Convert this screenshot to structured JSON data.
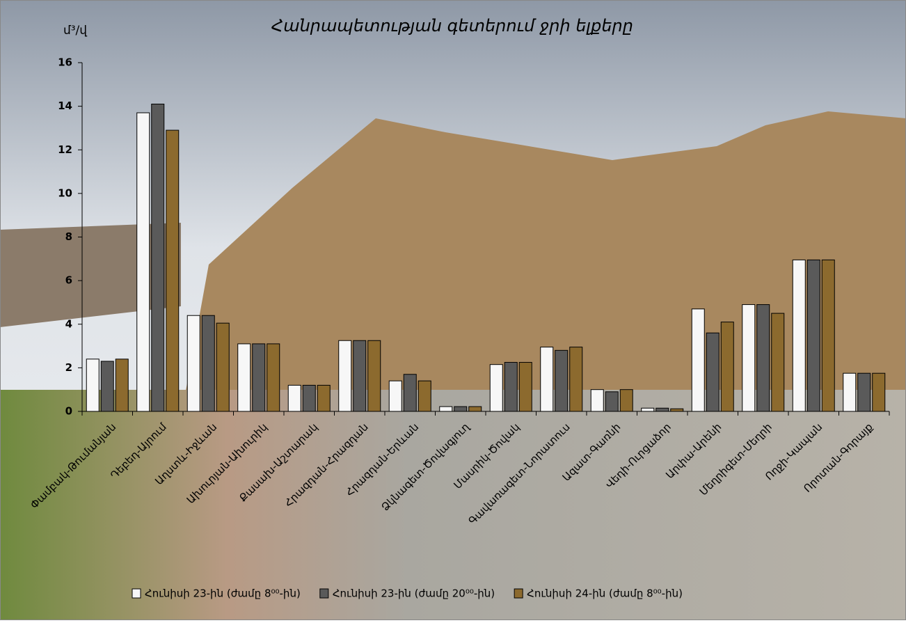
{
  "chart_data": {
    "type": "bar",
    "title": "Հանրապետության գետերում ջրի ելքերը",
    "y_label": "մ³/վ",
    "categories": [
      "Փամբակ-Թումանյան",
      "Դեբեդ-Այրում",
      "Աղստև-Իջևան",
      "Ախուրյան-Ախուրիկ",
      "Քասախ-Աշտարակ",
      "Հրազդան-Հրազդան",
      "Հրազդան-Երևան",
      "Ձկնագետ-Ծովագյուղ",
      "Մասրիկ-Ծովակ",
      "Գավառագետ-Նորատուս",
      "Ազատ-Գառնի",
      "Վեդի-Ուրցաձոր",
      "Արփա-Արենի",
      "Մեղրիգետ-Մեղրի",
      "Ողջի-Կապան",
      "Որոտան-Գորայք"
    ],
    "series": [
      {
        "name": "Հունիսի 23-ին (ժամը 8⁰⁰-ին)",
        "color": "#f7f7f7",
        "values": [
          2.4,
          13.7,
          4.4,
          3.1,
          1.2,
          3.25,
          1.4,
          0.22,
          2.15,
          2.95,
          1.0,
          0.15,
          4.7,
          4.9,
          6.95,
          1.75
        ]
      },
      {
        "name": "Հունիսի 23-ին (ժամը 20⁰⁰-ին)",
        "color": "#5a5a5a",
        "values": [
          2.3,
          14.1,
          4.4,
          3.1,
          1.2,
          3.25,
          1.7,
          0.22,
          2.25,
          2.8,
          0.9,
          0.15,
          3.6,
          4.9,
          6.95,
          1.75
        ]
      },
      {
        "name": "Հունիսի 24-ին (ժամը 8⁰⁰-ին)",
        "color": "#8c6a2e",
        "values": [
          2.4,
          12.9,
          4.05,
          3.1,
          1.2,
          3.25,
          1.4,
          0.22,
          2.25,
          2.95,
          1.0,
          0.12,
          4.1,
          4.5,
          6.95,
          1.75
        ]
      }
    ],
    "ylim": [
      0,
      16
    ],
    "yticks": [
      0,
      2,
      4,
      6,
      8,
      10,
      12,
      14,
      16
    ],
    "grid": false,
    "legend": "bottom"
  }
}
